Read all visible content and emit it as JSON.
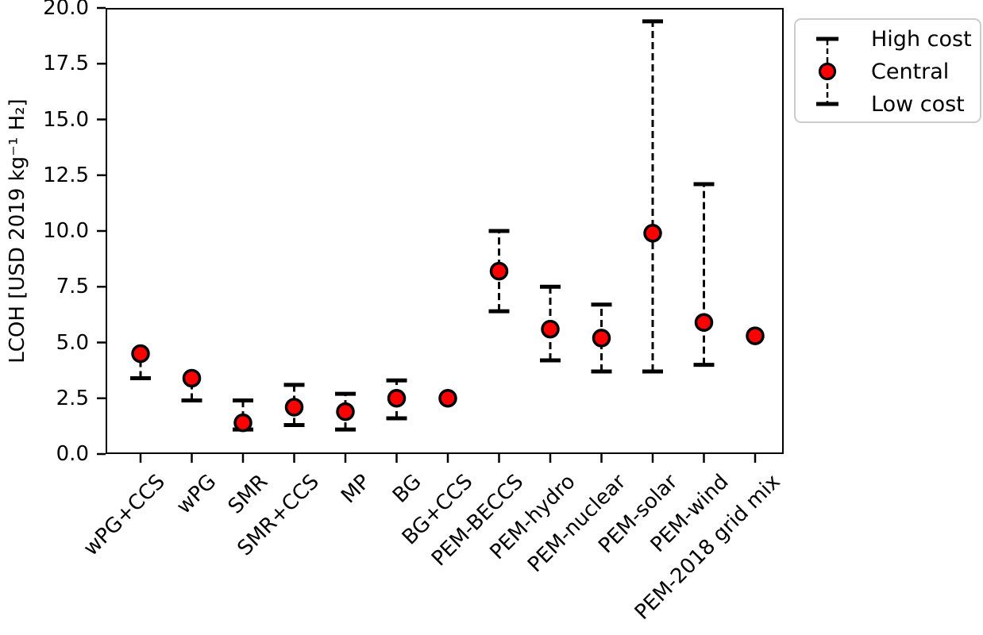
{
  "figure": {
    "background": "#ffffff"
  },
  "chart_data": {
    "type": "scatter",
    "subtype": "errorbar",
    "title": "",
    "xlabel": "",
    "ylabel": "LCOH [USD 2019 kg⁻¹ H₂]",
    "ylim": [
      0.0,
      20.0
    ],
    "ytick_values": [
      0,
      2.5,
      5,
      7.5,
      10,
      12.5,
      15,
      17.5,
      20
    ],
    "ytick_labels": [
      "0.0",
      "2.5",
      "5.0",
      "7.5",
      "10.0",
      "12.5",
      "15.0",
      "17.5",
      "20.0"
    ],
    "grid": false,
    "categories": [
      "wPG+CCS",
      "wPG",
      "SMR",
      "SMR+CCS",
      "MP",
      "BG",
      "BG+CCS",
      "PEM-BECCS",
      "PEM-hydro",
      "PEM-nuclear",
      "PEM-solar",
      "PEM-wind",
      "PEM-2018 grid mix"
    ],
    "series": [
      {
        "name": "High cost",
        "values": [
          4.5,
          3.4,
          2.4,
          3.1,
          2.7,
          3.3,
          null,
          10.0,
          7.5,
          6.7,
          19.4,
          12.1,
          null
        ]
      },
      {
        "name": "Central",
        "values": [
          4.5,
          3.4,
          1.4,
          2.1,
          1.9,
          2.5,
          2.5,
          8.2,
          5.6,
          5.2,
          9.9,
          5.9,
          5.3
        ]
      },
      {
        "name": "Low cost",
        "values": [
          3.4,
          2.4,
          1.1,
          1.3,
          1.1,
          1.6,
          null,
          6.4,
          4.2,
          3.7,
          3.7,
          4.0,
          null
        ]
      }
    ],
    "legend": {
      "position": "upper right",
      "items": [
        {
          "label": "High cost"
        },
        {
          "label": "Central"
        },
        {
          "label": "Low cost"
        }
      ]
    },
    "colors": {
      "marker_fill": "#ff0000",
      "marker_edge": "#000000",
      "errorbar": "#000000",
      "axis": "#000000",
      "legend_border": "#cccccc",
      "text": "#000000"
    }
  }
}
